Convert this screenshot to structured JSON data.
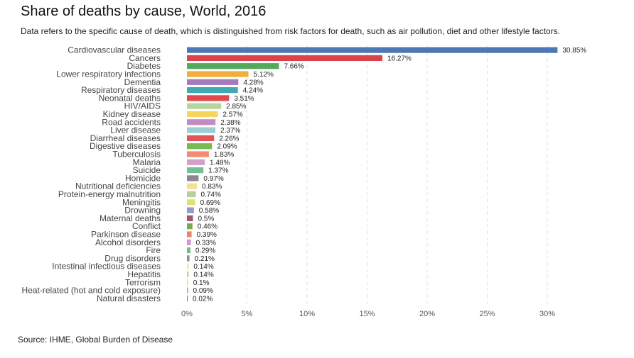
{
  "chart_data": {
    "type": "bar",
    "orientation": "horizontal",
    "title": "Share of deaths by cause, World, 2016",
    "subtitle": "Data refers to the specific cause of death, which is distinguished from risk factors for death, such as air pollution, diet and other lifestyle factors.",
    "source": "Source: IHME, Global Burden of Disease",
    "xlim": [
      0,
      31
    ],
    "xticks": [
      0,
      5,
      10,
      15,
      20,
      25,
      30
    ],
    "xtick_labels": [
      "0%",
      "5%",
      "10%",
      "15%",
      "20%",
      "25%",
      "30%"
    ],
    "grid": "vertical-dashed",
    "categories": [
      "Cardiovascular diseases",
      "Cancers",
      "Diabetes",
      "Lower respiratory infections",
      "Dementia",
      "Respiratory diseases",
      "Neonatal deaths",
      "HIV/AIDS",
      "Kidney disease",
      "Road accidents",
      "Liver disease",
      "Diarrheal diseases",
      "Digestive diseases",
      "Tuberculosis",
      "Malaria",
      "Suicide",
      "Homicide",
      "Nutritional deficiencies",
      "Protein-energy malnutrition",
      "Meningitis",
      "Drowning",
      "Maternal deaths",
      "Conflict",
      "Parkinson disease",
      "Alcohol disorders",
      "Fire",
      "Drug disorders",
      "Intestinal infectious diseases",
      "Hepatitis",
      "Terrorism",
      "Heat-related (hot and cold exposure)",
      "Natural disasters"
    ],
    "values": [
      30.85,
      16.27,
      7.66,
      5.12,
      4.28,
      4.24,
      3.51,
      2.85,
      2.57,
      2.38,
      2.37,
      2.26,
      2.09,
      1.83,
      1.48,
      1.37,
      0.97,
      0.83,
      0.74,
      0.69,
      0.58,
      0.5,
      0.46,
      0.39,
      0.33,
      0.29,
      0.21,
      0.14,
      0.14,
      0.1,
      0.09,
      0.02
    ],
    "value_labels": [
      "30.85%",
      "16.27%",
      "7.66%",
      "5.12%",
      "4.28%",
      "4.24%",
      "3.51%",
      "2.85%",
      "2.57%",
      "2.38%",
      "2.37%",
      "2.26%",
      "2.09%",
      "1.83%",
      "1.48%",
      "1.37%",
      "0.97%",
      "0.83%",
      "0.74%",
      "0.69%",
      "0.58%",
      "0.5%",
      "0.46%",
      "0.39%",
      "0.33%",
      "0.29%",
      "0.21%",
      "0.14%",
      "0.14%",
      "0.1%",
      "0.09%",
      "0.02%"
    ],
    "colors": [
      "#4c78b5",
      "#d9434a",
      "#56a85a",
      "#f0ae3c",
      "#a57bbf",
      "#40a9b3",
      "#e04a4e",
      "#b6d69e",
      "#f6d45e",
      "#c48bc2",
      "#9ccfd4",
      "#e0545a",
      "#79bb52",
      "#f48a72",
      "#d59fc9",
      "#74c095",
      "#8b8690",
      "#f6e18e",
      "#b9cf9a",
      "#e2e36e",
      "#8f9bc8",
      "#a0566c",
      "#7aaa4d",
      "#ee8466",
      "#cf98cf",
      "#6fbf8c",
      "#8f8a93",
      "#f3e6a0",
      "#c2d5a2",
      "#e7e683",
      "#9aa6cc",
      "#a8606f"
    ]
  }
}
